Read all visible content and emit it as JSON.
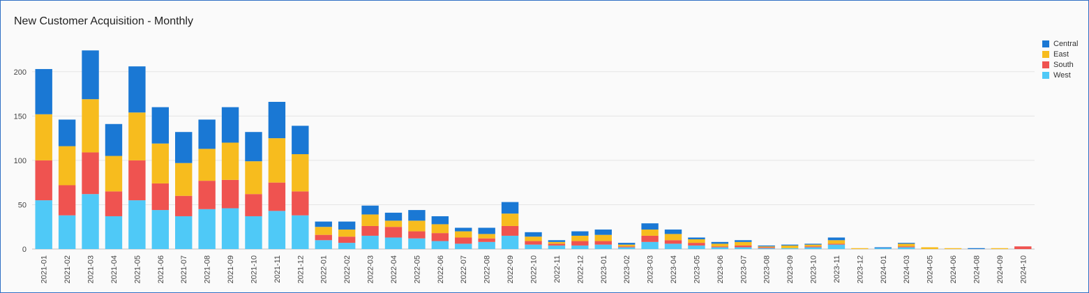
{
  "chart_data": {
    "type": "bar",
    "stacked": true,
    "title": "New Customer Acquisition - Monthly",
    "xlabel": "",
    "ylabel": "",
    "ylim": [
      0,
      225
    ],
    "yticks": [
      0,
      50,
      100,
      150,
      200
    ],
    "grid": true,
    "legend_position": "right",
    "categories": [
      "2021-01",
      "2021-02",
      "2021-03",
      "2021-04",
      "2021-05",
      "2021-06",
      "2021-07",
      "2021-08",
      "2021-09",
      "2021-10",
      "2021-11",
      "2021-12",
      "2022-01",
      "2022-02",
      "2022-03",
      "2022-04",
      "2022-05",
      "2022-06",
      "2022-07",
      "2022-08",
      "2022-09",
      "2022-10",
      "2022-11",
      "2022-12",
      "2023-01",
      "2023-02",
      "2023-03",
      "2023-04",
      "2023-05",
      "2023-06",
      "2023-07",
      "2023-08",
      "2023-09",
      "2023-10",
      "2023-11",
      "2023-12",
      "2024-01",
      "2024-03",
      "2024-05",
      "2024-06",
      "2024-08",
      "2024-09",
      "2024-10"
    ],
    "series": [
      {
        "name": "West",
        "color": "#4fc9f7",
        "values": [
          55,
          38,
          62,
          37,
          55,
          44,
          37,
          45,
          46,
          37,
          43,
          38,
          10,
          7,
          15,
          13,
          12,
          9,
          6,
          8,
          15,
          5,
          4,
          4,
          5,
          2,
          8,
          6,
          4,
          2,
          2,
          1,
          1,
          2,
          5,
          0,
          1,
          2,
          0,
          0,
          0,
          0,
          0
        ]
      },
      {
        "name": "South",
        "color": "#ef5350",
        "values": [
          45,
          34,
          47,
          28,
          45,
          30,
          23,
          32,
          32,
          25,
          32,
          27,
          6,
          7,
          11,
          12,
          8,
          9,
          7,
          4,
          11,
          4,
          2,
          5,
          4,
          1,
          7,
          4,
          3,
          1,
          2,
          1,
          0,
          1,
          1,
          0,
          0,
          1,
          0,
          0,
          0,
          0,
          3
        ]
      },
      {
        "name": "East",
        "color": "#f7bc1e",
        "values": [
          52,
          44,
          60,
          40,
          54,
          45,
          37,
          36,
          42,
          37,
          50,
          42,
          9,
          8,
          13,
          7,
          12,
          10,
          7,
          5,
          14,
          5,
          2,
          6,
          7,
          2,
          7,
          7,
          4,
          3,
          4,
          1,
          3,
          2,
          4,
          1,
          0,
          3,
          2,
          1,
          0,
          1,
          0
        ]
      },
      {
        "name": "Central",
        "color": "#1a78d4",
        "values": [
          51,
          30,
          55,
          36,
          52,
          41,
          35,
          33,
          40,
          33,
          41,
          32,
          6,
          9,
          10,
          9,
          12,
          9,
          4,
          7,
          13,
          5,
          2,
          5,
          6,
          2,
          7,
          5,
          2,
          2,
          2,
          1,
          1,
          1,
          3,
          0,
          1,
          1,
          0,
          0,
          1,
          0,
          0
        ]
      }
    ]
  }
}
